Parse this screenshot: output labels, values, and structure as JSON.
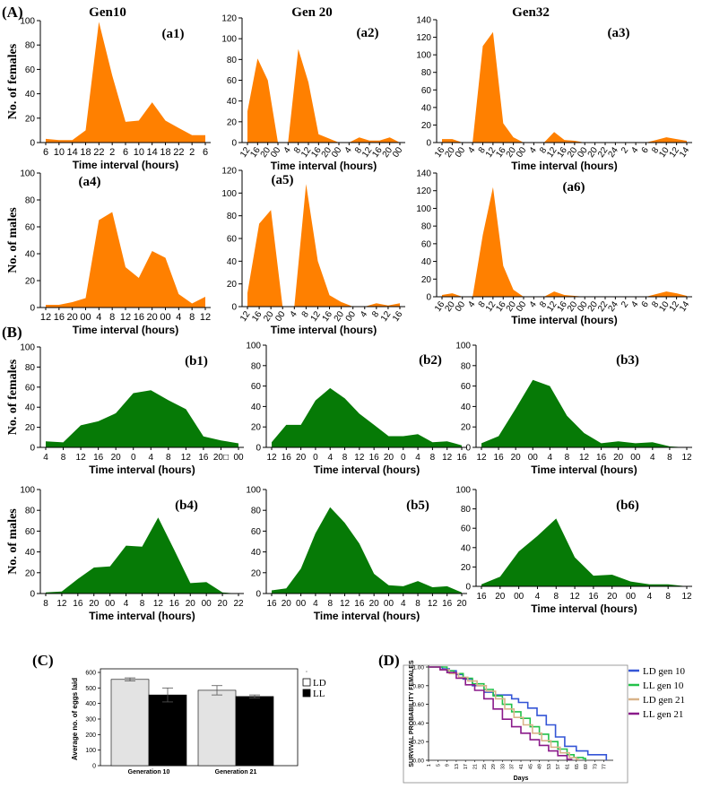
{
  "sections": {
    "A": "(A)",
    "B": "(B)",
    "C": "(C)",
    "D": "(D)"
  },
  "colors": {
    "orange": "#ff8000",
    "green": "#067a06",
    "ld_bar": "#e3e3e3",
    "ll_bar": "#000000",
    "ld10": "#3455d6",
    "ll10": "#23c14a",
    "ld21": "#d9b48a",
    "ll21": "#8a1a8a"
  },
  "chart_data": [
    {
      "id": "a1",
      "type": "area",
      "panel_label": "(a1)",
      "title": "Gen10",
      "ylabel": "No. of females",
      "xlabel": "Time interval (hours)",
      "ylim": [
        0,
        100
      ],
      "yticks": [
        0,
        20,
        40,
        60,
        80,
        100
      ],
      "categories": [
        "6",
        "10",
        "14",
        "18",
        "22",
        "2",
        "6",
        "10",
        "14",
        "18",
        "22",
        "2",
        "6"
      ],
      "values": [
        3,
        2,
        2,
        10,
        99,
        55,
        17,
        18,
        33,
        18,
        12,
        6,
        6
      ]
    },
    {
      "id": "a2",
      "type": "area",
      "panel_label": "(a2)",
      "title": "Gen 20",
      "ylabel": "",
      "xlabel": "Time interval (hours)",
      "ylim": [
        0,
        120
      ],
      "yticks": [
        0,
        20,
        40,
        60,
        80,
        100,
        120
      ],
      "categories": [
        "12",
        "16",
        "20",
        "00",
        "4",
        "8",
        "12",
        "16",
        "20",
        "00",
        "4",
        "8",
        "12",
        "16",
        "20",
        "00"
      ],
      "values": [
        30,
        81,
        60,
        0,
        0,
        90,
        58,
        8,
        4,
        0,
        0,
        5,
        2,
        2,
        5,
        0
      ]
    },
    {
      "id": "a3",
      "type": "area",
      "panel_label": "(a3)",
      "title": "Gen32",
      "ylabel": "",
      "xlabel": "Time interval (hours)",
      "ylim": [
        0,
        140
      ],
      "yticks": [
        0,
        20,
        40,
        60,
        80,
        100,
        120,
        140
      ],
      "categories": [
        "16",
        "20",
        "00",
        "4",
        "8",
        "12",
        "16",
        "20",
        "00",
        "4",
        "8",
        "12",
        "16",
        "20",
        "00",
        "20",
        "22",
        "24",
        "2",
        "4",
        "6",
        "8",
        "10",
        "12",
        "14"
      ],
      "values": [
        4,
        4,
        0,
        0,
        110,
        126,
        22,
        6,
        0,
        0,
        0,
        12,
        3,
        2,
        0,
        0,
        0,
        0,
        0,
        0,
        0,
        3,
        6,
        4,
        2
      ]
    },
    {
      "id": "a4",
      "type": "area",
      "panel_label": "(a4)",
      "ylabel": "No. of males",
      "xlabel": "Time interval (hours)",
      "ylim": [
        0,
        100
      ],
      "yticks": [
        0,
        20,
        40,
        60,
        80,
        100
      ],
      "categories": [
        "12",
        "16",
        "20",
        "00",
        "4",
        "8",
        "12",
        "16",
        "20",
        "00",
        "4",
        "8",
        "12"
      ],
      "values": [
        2,
        2,
        4,
        7,
        65,
        71,
        30,
        22,
        42,
        37,
        10,
        3,
        8
      ]
    },
    {
      "id": "a5",
      "type": "area",
      "panel_label": "(a5)",
      "ylabel": "",
      "xlabel": "Time interval (hours)",
      "ylim": [
        0,
        120
      ],
      "yticks": [
        0,
        20,
        40,
        60,
        80,
        100,
        120
      ],
      "categories": [
        "12",
        "16",
        "20",
        "00",
        "4",
        "8",
        "12",
        "16",
        "20",
        "00",
        "4",
        "8",
        "12",
        "16"
      ],
      "values": [
        12,
        73,
        85,
        0,
        0,
        108,
        40,
        10,
        4,
        0,
        0,
        3,
        1,
        3
      ]
    },
    {
      "id": "a6",
      "type": "area",
      "panel_label": "(a6)",
      "ylabel": "",
      "xlabel": "Time interval (hours)",
      "ylim": [
        0,
        140
      ],
      "yticks": [
        0,
        20,
        40,
        60,
        80,
        100,
        120,
        140
      ],
      "categories": [
        "16",
        "20",
        "00",
        "4",
        "8",
        "12",
        "16",
        "20",
        "00",
        "4",
        "8",
        "12",
        "16",
        "20",
        "00",
        "20",
        "22",
        "24",
        "2",
        "4",
        "6",
        "8",
        "10",
        "12",
        "14"
      ],
      "values": [
        2,
        4,
        0,
        0,
        70,
        124,
        35,
        8,
        0,
        0,
        0,
        6,
        2,
        1,
        0,
        0,
        0,
        0,
        0,
        0,
        0,
        3,
        6,
        4,
        1
      ]
    },
    {
      "id": "b1",
      "type": "area",
      "panel_label": "(b1)",
      "ylabel": "No. of females",
      "xlabel": "Time interval (hours)",
      "ylim": [
        0,
        100
      ],
      "yticks": [
        0,
        20,
        40,
        60,
        80,
        100
      ],
      "categories": [
        "4",
        "8",
        "12",
        "16",
        "20",
        "0",
        "4",
        "8",
        "12",
        "16",
        "20□",
        "00"
      ],
      "values": [
        6,
        5,
        22,
        26,
        34,
        54,
        57,
        47,
        38,
        11,
        7,
        4
      ]
    },
    {
      "id": "b2",
      "type": "area",
      "panel_label": "(b2)",
      "ylabel": "",
      "xlabel": "Time interval (hours)",
      "ylim": [
        0,
        100
      ],
      "yticks": [
        0,
        20,
        40,
        60,
        80,
        100
      ],
      "categories": [
        "12",
        "16",
        "20",
        "0",
        "4",
        "8",
        "12",
        "16",
        "20",
        "0",
        "4",
        "8",
        "12",
        "16"
      ],
      "values": [
        5,
        22,
        22,
        46,
        58,
        48,
        33,
        22,
        11,
        11,
        13,
        5,
        6,
        2
      ]
    },
    {
      "id": "b3",
      "type": "area",
      "panel_label": "(b3)",
      "ylabel": "",
      "xlabel": "Time interval (hours)",
      "ylim": [
        0,
        100
      ],
      "yticks": [
        0,
        20,
        40,
        60,
        80,
        100
      ],
      "categories": [
        "12",
        "16",
        "20",
        "00",
        "4",
        "8",
        "12",
        "16",
        "20",
        "00",
        "4",
        "8",
        "12"
      ],
      "values": [
        4,
        11,
        38,
        66,
        60,
        31,
        14,
        4,
        6,
        4,
        5,
        1,
        0
      ]
    },
    {
      "id": "b4",
      "type": "area",
      "panel_label": "(b4)",
      "ylabel": "No. of males",
      "xlabel": "Time interval (hours)",
      "ylim": [
        0,
        100
      ],
      "yticks": [
        0,
        20,
        40,
        60,
        80,
        100
      ],
      "categories": [
        "8",
        "12",
        "16",
        "20",
        "00",
        "4",
        "8",
        "12",
        "16",
        "20",
        "00",
        "20",
        "22"
      ],
      "values": [
        1,
        2,
        14,
        25,
        26,
        46,
        45,
        73,
        42,
        10,
        11,
        1,
        0
      ]
    },
    {
      "id": "b5",
      "type": "area",
      "panel_label": "(b5)",
      "ylabel": "",
      "xlabel": "Time interval (hours)",
      "ylim": [
        0,
        100
      ],
      "yticks": [
        0,
        20,
        40,
        60,
        80,
        100
      ],
      "categories": [
        "16",
        "20",
        "00",
        "4",
        "8",
        "12",
        "16",
        "20",
        "00",
        "4",
        "8",
        "12",
        "16",
        "20"
      ],
      "values": [
        3,
        5,
        24,
        58,
        83,
        68,
        48,
        19,
        8,
        7,
        12,
        6,
        7,
        1
      ]
    },
    {
      "id": "b6",
      "type": "area",
      "panel_label": "(b6)",
      "ylabel": "",
      "xlabel": "Time interval (hours)",
      "ylim": [
        0,
        100
      ],
      "yticks": [
        0,
        20,
        40,
        60,
        80,
        100
      ],
      "categories": [
        "16",
        "20",
        "00",
        "4",
        "8",
        "12",
        "16",
        "20",
        "00",
        "4",
        "8",
        "12"
      ],
      "values": [
        2,
        10,
        36,
        52,
        70,
        30,
        11,
        12,
        5,
        2,
        2,
        0
      ]
    },
    {
      "id": "c",
      "type": "bar",
      "ylabel": "Average no. of eggs laid",
      "ylim": [
        0,
        600
      ],
      "yticks": [
        0,
        100,
        200,
        300,
        400,
        500,
        600
      ],
      "categories": [
        "Generation 10",
        "Generation 21"
      ],
      "series": [
        {
          "name": "LD",
          "values": [
            555,
            485
          ],
          "errors": [
            10,
            30
          ]
        },
        {
          "name": "LL",
          "values": [
            455,
            445
          ],
          "errors": [
            45,
            10
          ]
        }
      ],
      "legend_marker": "·"
    },
    {
      "id": "d",
      "type": "line",
      "ylabel": "SURVIVAL PROBABILITY FEMALES",
      "xlabel": "Days",
      "ylim": [
        0,
        1
      ],
      "xlim": [
        1,
        81
      ],
      "yticks": [
        "0.00",
        "0.20",
        "0.40",
        "0.60",
        "0.80",
        "1.00"
      ],
      "xticks": [
        "1",
        "5",
        "9",
        "13",
        "17",
        "21",
        "25",
        "29",
        "33",
        "37",
        "41",
        "45",
        "49",
        "53",
        "57",
        "61",
        "65",
        "69",
        "73",
        "77"
      ],
      "series": [
        {
          "name": "LD gen 10",
          "x": [
            1,
            7,
            10,
            13,
            16,
            20,
            25,
            29,
            33,
            37,
            40,
            44,
            48,
            52,
            56,
            60,
            65,
            70,
            75,
            78
          ],
          "y": [
            1.0,
            0.98,
            0.96,
            0.92,
            0.87,
            0.8,
            0.73,
            0.7,
            0.7,
            0.66,
            0.62,
            0.56,
            0.48,
            0.38,
            0.25,
            0.15,
            0.1,
            0.06,
            0.06,
            0.0
          ]
        },
        {
          "name": "LL gen 10",
          "x": [
            1,
            6,
            9,
            12,
            16,
            20,
            25,
            29,
            33,
            37,
            41,
            45,
            49,
            53,
            57,
            61,
            64,
            68,
            69
          ],
          "y": [
            1.0,
            1.0,
            0.96,
            0.93,
            0.88,
            0.82,
            0.76,
            0.69,
            0.6,
            0.52,
            0.45,
            0.36,
            0.28,
            0.2,
            0.12,
            0.06,
            0.03,
            0.02,
            0.0
          ]
        },
        {
          "name": "LD gen 21",
          "x": [
            1,
            6,
            10,
            14,
            18,
            22,
            26,
            30,
            34,
            38,
            42,
            46,
            50,
            54,
            58,
            62,
            65,
            66
          ],
          "y": [
            1.0,
            0.97,
            0.93,
            0.89,
            0.85,
            0.8,
            0.74,
            0.66,
            0.55,
            0.46,
            0.38,
            0.29,
            0.21,
            0.14,
            0.08,
            0.03,
            0.01,
            0.0
          ]
        },
        {
          "name": "LL gen 21",
          "x": [
            1,
            6,
            9,
            13,
            17,
            21,
            25,
            29,
            33,
            37,
            41,
            45,
            49,
            53,
            57,
            61,
            63
          ],
          "y": [
            1.0,
            0.97,
            0.94,
            0.88,
            0.81,
            0.75,
            0.66,
            0.55,
            0.44,
            0.36,
            0.29,
            0.22,
            0.16,
            0.1,
            0.05,
            0.01,
            0.0
          ]
        }
      ]
    }
  ]
}
